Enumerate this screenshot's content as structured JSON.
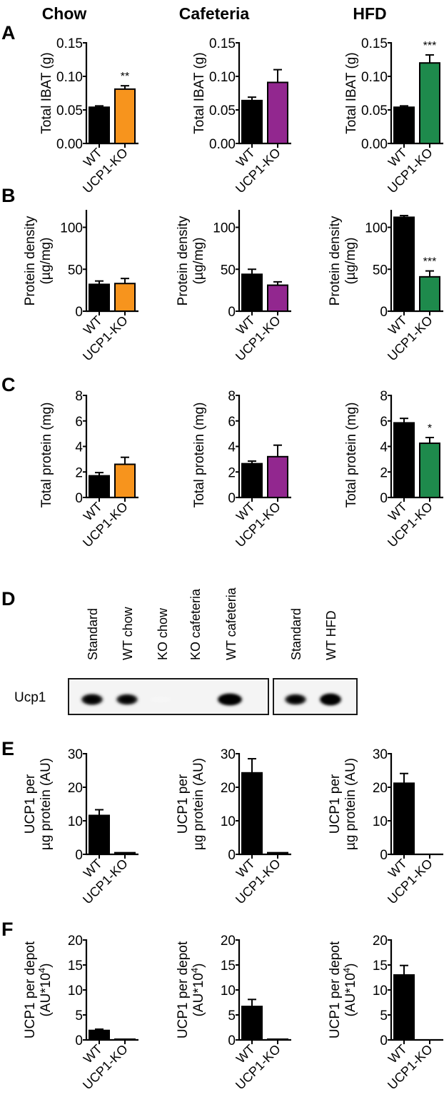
{
  "figure": {
    "columns": [
      "Chow",
      "Cafeteria",
      "HFD"
    ],
    "panel_letters": [
      "A",
      "B",
      "C",
      "D",
      "E",
      "F"
    ],
    "categories": [
      "WT",
      "UCP1-KO"
    ],
    "colors": {
      "wt": "#000000",
      "chow_ko": "#f7941d",
      "cafeteria_ko": "#92278f",
      "hfd_ko": "#1e8a4c"
    }
  },
  "chart_data": [
    {
      "panel": "A",
      "type": "bar",
      "diet": "Chow",
      "ylabel": "Total IBAT (g)",
      "ylim": [
        0,
        0.15
      ],
      "yticks": [
        "0.00",
        "0.05",
        "0.10",
        "0.15"
      ],
      "categories": [
        "WT",
        "UCP1-KO"
      ],
      "values": [
        0.054,
        0.081
      ],
      "errors": [
        0.002,
        0.005
      ],
      "colors": [
        "#000000",
        "#f7941d"
      ],
      "significance": [
        "",
        "**"
      ]
    },
    {
      "panel": "A",
      "type": "bar",
      "diet": "Cafeteria",
      "ylabel": "Total IBAT (g)",
      "ylim": [
        0,
        0.15
      ],
      "yticks": [
        "0.00",
        "0.05",
        "0.10",
        "0.15"
      ],
      "categories": [
        "WT",
        "UCP1-KO"
      ],
      "values": [
        0.064,
        0.091
      ],
      "errors": [
        0.005,
        0.019
      ],
      "colors": [
        "#000000",
        "#92278f"
      ],
      "significance": [
        "",
        ""
      ]
    },
    {
      "panel": "A",
      "type": "bar",
      "diet": "HFD",
      "ylabel": "Total IBAT (g)",
      "ylim": [
        0,
        0.15
      ],
      "yticks": [
        "0.00",
        "0.05",
        "0.10",
        "0.15"
      ],
      "categories": [
        "WT",
        "UCP1-KO"
      ],
      "values": [
        0.054,
        0.12
      ],
      "errors": [
        0.002,
        0.012
      ],
      "colors": [
        "#000000",
        "#1e8a4c"
      ],
      "significance": [
        "",
        "***"
      ]
    },
    {
      "panel": "B",
      "type": "bar",
      "diet": "Chow",
      "ylabel": "Protein density",
      "ylabel2": "(µg/mg)",
      "ylim": [
        0,
        120
      ],
      "yticks": [
        "0",
        "50",
        "100"
      ],
      "categories": [
        "WT",
        "UCP1-KO"
      ],
      "values": [
        32,
        33
      ],
      "errors": [
        4,
        6
      ],
      "colors": [
        "#000000",
        "#f7941d"
      ],
      "significance": [
        "",
        ""
      ]
    },
    {
      "panel": "B",
      "type": "bar",
      "diet": "Cafeteria",
      "ylabel": "Protein density",
      "ylabel2": "(µg/mg)",
      "ylim": [
        0,
        120
      ],
      "yticks": [
        "0",
        "50",
        "100"
      ],
      "categories": [
        "WT",
        "UCP1-KO"
      ],
      "values": [
        44,
        31
      ],
      "errors": [
        6,
        4
      ],
      "colors": [
        "#000000",
        "#92278f"
      ],
      "significance": [
        "",
        ""
      ]
    },
    {
      "panel": "B",
      "type": "bar",
      "diet": "HFD",
      "ylabel": "Protein density",
      "ylabel2": "(µg/mg)",
      "ylim": [
        0,
        120
      ],
      "yticks": [
        "0",
        "50",
        "100"
      ],
      "categories": [
        "WT",
        "UCP1-KO"
      ],
      "values": [
        112,
        41
      ],
      "errors": [
        2,
        7
      ],
      "colors": [
        "#000000",
        "#1e8a4c"
      ],
      "significance": [
        "",
        "***"
      ]
    },
    {
      "panel": "C",
      "type": "bar",
      "diet": "Chow",
      "ylabel": "Total protein (mg)",
      "ylim": [
        0,
        8
      ],
      "yticks": [
        "0",
        "2",
        "4",
        "6",
        "8"
      ],
      "categories": [
        "WT",
        "UCP1-KO"
      ],
      "values": [
        1.7,
        2.6
      ],
      "errors": [
        0.25,
        0.55
      ],
      "colors": [
        "#000000",
        "#f7941d"
      ],
      "significance": [
        "",
        ""
      ]
    },
    {
      "panel": "C",
      "type": "bar",
      "diet": "Cafeteria",
      "ylabel": "Total protein (mg)",
      "ylim": [
        0,
        8
      ],
      "yticks": [
        "0",
        "2",
        "4",
        "6",
        "8"
      ],
      "categories": [
        "WT",
        "UCP1-KO"
      ],
      "values": [
        2.65,
        3.2
      ],
      "errors": [
        0.2,
        0.9
      ],
      "colors": [
        "#000000",
        "#92278f"
      ],
      "significance": [
        "",
        ""
      ]
    },
    {
      "panel": "C",
      "type": "bar",
      "diet": "HFD",
      "ylabel": "Total protein (mg)",
      "ylim": [
        0,
        8
      ],
      "yticks": [
        "0",
        "2",
        "4",
        "6",
        "8"
      ],
      "categories": [
        "WT",
        "UCP1-KO"
      ],
      "values": [
        5.85,
        4.25
      ],
      "errors": [
        0.35,
        0.45
      ],
      "colors": [
        "#000000",
        "#1e8a4c"
      ],
      "significance": [
        "",
        "*"
      ]
    },
    {
      "panel": "E",
      "type": "bar",
      "diet": "Chow",
      "ylabel": "UCP1 per",
      "ylabel2": "µg protein (AU)",
      "ylim": [
        0,
        30
      ],
      "yticks": [
        "0",
        "10",
        "20",
        "30"
      ],
      "categories": [
        "WT",
        "UCP1-KO"
      ],
      "values": [
        11.6,
        0.5
      ],
      "errors": [
        1.7,
        0
      ],
      "colors": [
        "#000000",
        "#000000"
      ],
      "significance": [
        "",
        ""
      ]
    },
    {
      "panel": "E",
      "type": "bar",
      "diet": "Cafeteria",
      "ylabel": "UCP1 per",
      "ylabel2": "µg protein (AU)",
      "ylim": [
        0,
        30
      ],
      "yticks": [
        "0",
        "10",
        "20",
        "30"
      ],
      "categories": [
        "WT",
        "UCP1-KO"
      ],
      "values": [
        24.3,
        0.5
      ],
      "errors": [
        4.2,
        0
      ],
      "colors": [
        "#000000",
        "#000000"
      ],
      "significance": [
        "",
        ""
      ]
    },
    {
      "panel": "E",
      "type": "bar",
      "diet": "HFD",
      "ylabel": "UCP1 per",
      "ylabel2": "µg protein (AU)",
      "ylim": [
        0,
        30
      ],
      "yticks": [
        "0",
        "10",
        "20",
        "30"
      ],
      "categories": [
        "WT",
        "UCP1-KO"
      ],
      "values": [
        21.2,
        0
      ],
      "errors": [
        2.9,
        0
      ],
      "colors": [
        "#000000",
        "#000000"
      ],
      "significance": [
        "",
        ""
      ]
    },
    {
      "panel": "F",
      "type": "bar",
      "diet": "Chow",
      "ylabel": "UCP1 per depot",
      "ylabel2": "(AU*10",
      "ylabel2_sup": "4",
      "ylabel2_end": ")",
      "ylim": [
        0,
        20
      ],
      "yticks": [
        "0",
        "5",
        "10",
        "15",
        "20"
      ],
      "categories": [
        "WT",
        "UCP1-KO"
      ],
      "values": [
        1.9,
        0.15
      ],
      "errors": [
        0.25,
        0
      ],
      "colors": [
        "#000000",
        "#000000"
      ],
      "significance": [
        "",
        ""
      ]
    },
    {
      "panel": "F",
      "type": "bar",
      "diet": "Cafeteria",
      "ylabel": "UCP1 per depot",
      "ylabel2": "(AU*10",
      "ylabel2_sup": "4",
      "ylabel2_end": ")",
      "ylim": [
        0,
        20
      ],
      "yticks": [
        "0",
        "5",
        "10",
        "15",
        "20"
      ],
      "categories": [
        "WT",
        "UCP1-KO"
      ],
      "values": [
        6.7,
        0.15
      ],
      "errors": [
        1.4,
        0
      ],
      "colors": [
        "#000000",
        "#000000"
      ],
      "significance": [
        "",
        ""
      ]
    },
    {
      "panel": "F",
      "type": "bar",
      "diet": "HFD",
      "ylabel": "UCP1 per depot",
      "ylabel2": "(AU*10",
      "ylabel2_sup": "4",
      "ylabel2_end": ")",
      "ylim": [
        0,
        20
      ],
      "yticks": [
        "0",
        "5",
        "10",
        "15",
        "20"
      ],
      "categories": [
        "WT",
        "UCP1-KO"
      ],
      "values": [
        13.0,
        0
      ],
      "errors": [
        1.9,
        0
      ],
      "colors": [
        "#000000",
        "#000000"
      ],
      "significance": [
        "",
        ""
      ]
    }
  ],
  "western_blot": {
    "panel": "D",
    "protein_label": "Ucp1",
    "lanes_group1": [
      "Standard",
      "WT chow",
      "KO chow",
      "KO cafeteria",
      "WT cafeteria"
    ],
    "lanes_group2": [
      "Standard",
      "WT HFD"
    ],
    "band_intensity_group1": [
      0.85,
      0.8,
      0.03,
      0.0,
      1.0
    ],
    "band_intensity_group2": [
      0.8,
      1.0
    ]
  }
}
